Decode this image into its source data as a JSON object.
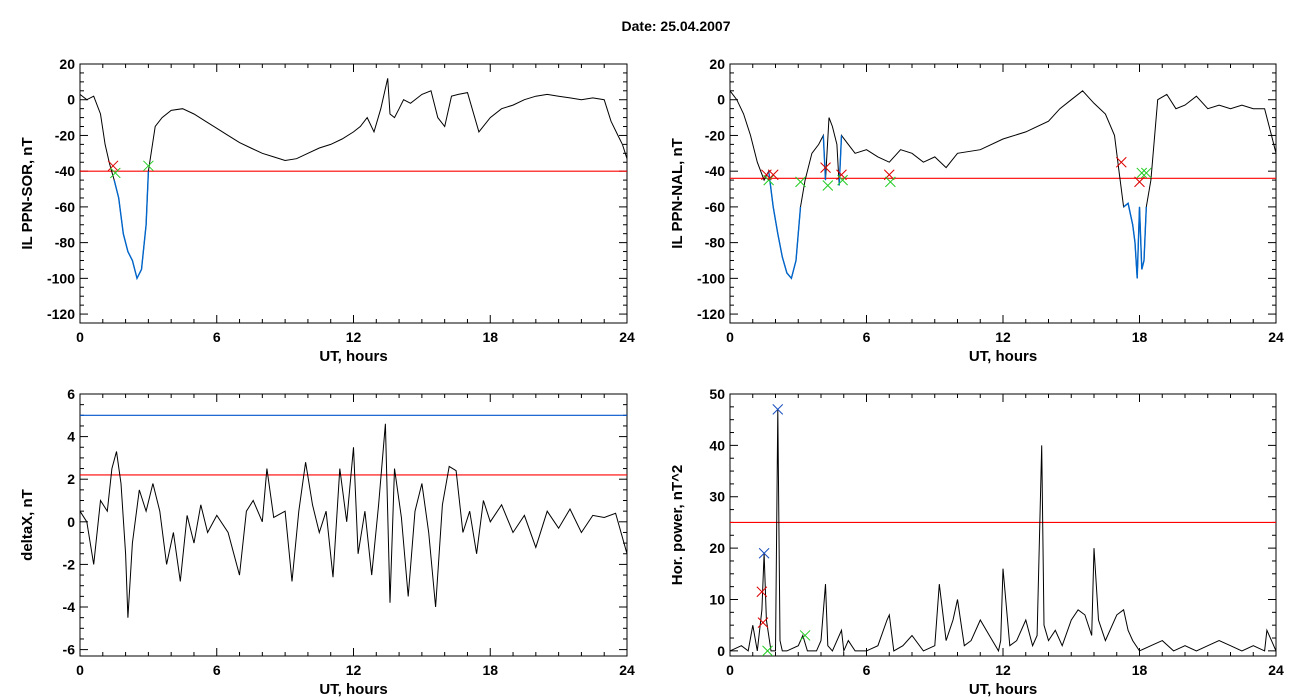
{
  "page": {
    "title": "Date:  25.04.2007"
  },
  "colors": {
    "trace": "#000000",
    "threshold": "#ff0000",
    "limit": "#0055cc",
    "highlight": "#0066cc",
    "start_marker": "#dd0000",
    "end_marker": "#22cc22",
    "peak_marker": "#1a4fbf"
  },
  "chart_data": [
    {
      "id": "p1",
      "type": "line",
      "xlabel": "UT, hours",
      "ylabel": "IL PPN-SOR, nT",
      "xlim": [
        0,
        24
      ],
      "ylim": [
        -125,
        20
      ],
      "xticks": [
        0,
        6,
        12,
        18,
        24
      ],
      "yticks": [
        -120,
        -100,
        -80,
        -60,
        -40,
        -20,
        0,
        20
      ],
      "series": [
        {
          "x": [
            0.0,
            0.3,
            0.6,
            0.9,
            1.1,
            1.3,
            1.5,
            1.7,
            1.9,
            2.1,
            2.3,
            2.5,
            2.7,
            2.9,
            3.0,
            3.3,
            3.6,
            4.0,
            4.5,
            5.0,
            5.5,
            6.0,
            6.5,
            7.0,
            7.5,
            8.0,
            8.5,
            9.0,
            9.5,
            10.0,
            10.5,
            11.0,
            11.5,
            12.0,
            12.3,
            12.6,
            12.9,
            13.2,
            13.5,
            13.6,
            13.8,
            14.0,
            14.2,
            14.5,
            15.0,
            15.4,
            15.7,
            16.0,
            16.3,
            16.6,
            17.0,
            17.5,
            18.0,
            18.5,
            19.0,
            19.5,
            20.0,
            20.5,
            21.0,
            21.5,
            22.0,
            22.5,
            23.0,
            23.3,
            23.6,
            23.8,
            24.0
          ],
          "y": [
            3,
            0,
            2,
            -8,
            -25,
            -36,
            -45,
            -55,
            -75,
            -85,
            -90,
            -100,
            -95,
            -70,
            -40,
            -15,
            -10,
            -6,
            -5,
            -8,
            -12,
            -16,
            -20,
            -24,
            -27,
            -30,
            -32,
            -34,
            -33,
            -30,
            -27,
            -25,
            -22,
            -18,
            -15,
            -10,
            -18,
            -5,
            12,
            -8,
            -10,
            -5,
            0,
            -2,
            3,
            5,
            -10,
            -15,
            2,
            3,
            4,
            -18,
            -10,
            -5,
            -3,
            0,
            2,
            3,
            2,
            1,
            0,
            1,
            0,
            -12,
            -20,
            -25,
            -33
          ],
          "highlight_range": [
            1.4,
            3.0
          ]
        }
      ],
      "threshold": -40,
      "markers": [
        {
          "x": 1.45,
          "y": -37,
          "color": "start"
        },
        {
          "x": 1.55,
          "y": -41,
          "color": "end"
        },
        {
          "x": 3.0,
          "y": -37,
          "color": "end"
        }
      ]
    },
    {
      "id": "p2",
      "type": "line",
      "xlabel": "UT, hours",
      "ylabel": "IL PPN-NAL, nT",
      "xlim": [
        0,
        24
      ],
      "ylim": [
        -125,
        20
      ],
      "xticks": [
        0,
        6,
        12,
        18,
        24
      ],
      "yticks": [
        -120,
        -100,
        -80,
        -60,
        -40,
        -20,
        0,
        20
      ],
      "series": [
        {
          "x": [
            0.0,
            0.3,
            0.6,
            0.9,
            1.2,
            1.5,
            1.7,
            1.9,
            2.1,
            2.3,
            2.5,
            2.7,
            2.9,
            3.1,
            3.3,
            3.6,
            3.9,
            4.1,
            4.2,
            4.35,
            4.5,
            4.7,
            4.8,
            4.9,
            5.2,
            5.5,
            6.0,
            6.5,
            7.0,
            7.5,
            8.0,
            8.5,
            9.0,
            9.5,
            10.0,
            11.0,
            12.0,
            13.0,
            14.0,
            14.5,
            15.0,
            15.5,
            16.0,
            16.5,
            16.9,
            17.1,
            17.3,
            17.5,
            17.7,
            17.8,
            17.9,
            18.0,
            18.1,
            18.2,
            18.3,
            18.5,
            18.8,
            19.2,
            19.6,
            20.0,
            20.5,
            21.0,
            21.5,
            22.0,
            22.5,
            23.0,
            23.5,
            23.8,
            24.0
          ],
          "y": [
            5,
            0,
            -8,
            -20,
            -35,
            -45,
            -40,
            -60,
            -75,
            -88,
            -97,
            -100,
            -90,
            -60,
            -45,
            -30,
            -25,
            -20,
            -45,
            -10,
            -15,
            -25,
            -48,
            -20,
            -25,
            -30,
            -28,
            -32,
            -35,
            -28,
            -30,
            -35,
            -32,
            -38,
            -30,
            -28,
            -22,
            -18,
            -12,
            -5,
            0,
            5,
            -2,
            -8,
            -20,
            -40,
            -60,
            -58,
            -70,
            -80,
            -100,
            -60,
            -95,
            -90,
            -60,
            -45,
            0,
            3,
            -5,
            -3,
            2,
            -5,
            -3,
            -5,
            -3,
            -5,
            -5,
            -20,
            -30
          ],
          "highlight_ranges": [
            [
              1.6,
              3.1
            ],
            [
              4.1,
              4.3
            ],
            [
              4.75,
              4.95
            ],
            [
              17.2,
              18.3
            ]
          ]
        }
      ],
      "threshold": -44,
      "markers": [
        {
          "x": 1.6,
          "y": -42,
          "color": "start"
        },
        {
          "x": 1.7,
          "y": -45,
          "color": "end"
        },
        {
          "x": 1.9,
          "y": -42,
          "color": "start"
        },
        {
          "x": 3.1,
          "y": -46,
          "color": "end"
        },
        {
          "x": 4.2,
          "y": -38,
          "color": "start"
        },
        {
          "x": 4.3,
          "y": -48,
          "color": "end"
        },
        {
          "x": 4.9,
          "y": -42,
          "color": "start"
        },
        {
          "x": 4.95,
          "y": -45,
          "color": "end"
        },
        {
          "x": 7.0,
          "y": -42,
          "color": "start"
        },
        {
          "x": 7.05,
          "y": -46,
          "color": "end"
        },
        {
          "x": 17.2,
          "y": -35,
          "color": "start"
        },
        {
          "x": 18.0,
          "y": -46,
          "color": "start"
        },
        {
          "x": 18.3,
          "y": -41,
          "color": "end"
        },
        {
          "x": 18.1,
          "y": -41,
          "color": "end"
        }
      ]
    },
    {
      "id": "p3",
      "type": "line",
      "xlabel": "UT, hours",
      "ylabel": "deltaX, nT",
      "xlim": [
        0,
        24
      ],
      "ylim": [
        -6.3,
        6
      ],
      "xticks": [
        0,
        6,
        12,
        18,
        24
      ],
      "yticks": [
        -6,
        -4,
        -2,
        0,
        2,
        4,
        6
      ],
      "series": [
        {
          "x": [
            0.0,
            0.3,
            0.6,
            0.9,
            1.2,
            1.4,
            1.6,
            1.8,
            2.0,
            2.1,
            2.3,
            2.6,
            2.9,
            3.2,
            3.5,
            3.8,
            4.1,
            4.4,
            4.7,
            5.0,
            5.3,
            5.6,
            6.0,
            6.5,
            7.0,
            7.3,
            7.6,
            8.0,
            8.2,
            8.5,
            9.0,
            9.3,
            9.6,
            9.9,
            10.2,
            10.5,
            10.8,
            11.1,
            11.4,
            11.7,
            12.0,
            12.2,
            12.5,
            12.8,
            13.1,
            13.4,
            13.6,
            13.8,
            14.1,
            14.4,
            14.7,
            15.0,
            15.3,
            15.6,
            15.9,
            16.2,
            16.5,
            16.8,
            17.1,
            17.4,
            17.7,
            18.0,
            18.5,
            19.0,
            19.5,
            20.0,
            20.5,
            21.0,
            21.5,
            22.0,
            22.5,
            23.0,
            23.5,
            24.0
          ],
          "y": [
            0.5,
            0,
            -2,
            1,
            0.5,
            2.5,
            3.3,
            1.8,
            -1.5,
            -4.5,
            -1,
            1.5,
            0.5,
            1.8,
            0.5,
            -2,
            -0.5,
            -2.8,
            0.3,
            -1,
            0.8,
            -0.5,
            0.3,
            -0.5,
            -2.5,
            0.5,
            1.0,
            0,
            2.5,
            0.2,
            0.5,
            -2.8,
            0.5,
            2.8,
            0.8,
            -0.5,
            0.5,
            -2.6,
            2.5,
            0,
            3.5,
            -1.5,
            0.5,
            -2.5,
            0.8,
            4.6,
            -3.8,
            2.5,
            0.2,
            -3.5,
            0.5,
            1.8,
            -0.5,
            -4.0,
            0.8,
            2.6,
            2.4,
            -0.5,
            0.5,
            -1.5,
            1.0,
            0,
            0.8,
            -0.5,
            0.3,
            -1.2,
            0.5,
            -0.3,
            0.6,
            -0.5,
            0.3,
            0.2,
            0.4,
            -1.5
          ]
        }
      ],
      "threshold": 2.2,
      "limit": 5.0
    },
    {
      "id": "p4",
      "type": "line",
      "xlabel": "UT, hours",
      "ylabel": "Hor. power, nT^2",
      "xlim": [
        0,
        24
      ],
      "ylim": [
        -1,
        50
      ],
      "xticks": [
        0,
        6,
        12,
        18,
        24
      ],
      "yticks": [
        0,
        10,
        20,
        30,
        40,
        50
      ],
      "series": [
        {
          "x": [
            0.0,
            0.5,
            0.8,
            1.0,
            1.2,
            1.4,
            1.5,
            1.6,
            1.8,
            2.0,
            2.1,
            2.2,
            2.3,
            2.5,
            3.0,
            3.2,
            3.4,
            3.8,
            4.0,
            4.2,
            4.3,
            4.5,
            4.9,
            5.0,
            5.2,
            5.5,
            6.0,
            6.5,
            6.9,
            7.0,
            7.2,
            7.6,
            8.0,
            8.5,
            9.0,
            9.2,
            9.5,
            9.8,
            10.0,
            10.3,
            10.6,
            11.0,
            11.4,
            11.8,
            11.9,
            12.0,
            12.3,
            12.6,
            13.0,
            13.3,
            13.5,
            13.7,
            13.8,
            14.0,
            14.3,
            14.6,
            15.0,
            15.3,
            15.6,
            15.9,
            16.0,
            16.2,
            16.5,
            17.0,
            17.3,
            17.5,
            17.7,
            18.0,
            18.5,
            19.0,
            19.5,
            20.0,
            20.5,
            21.0,
            21.5,
            22.0,
            22.5,
            23.0,
            23.5,
            23.6,
            23.8,
            24.0
          ],
          "y": [
            0,
            1,
            0,
            5,
            0,
            8,
            19,
            6,
            0,
            0,
            47,
            2,
            0,
            0,
            1,
            3,
            0,
            0,
            2,
            13,
            1,
            0,
            4,
            0,
            2,
            0,
            0,
            1,
            6,
            7,
            0,
            1,
            3,
            0,
            1,
            13,
            2,
            6,
            10,
            1,
            2,
            6,
            3,
            0,
            2,
            16,
            1,
            2,
            6,
            1,
            3,
            40,
            5,
            2,
            4,
            1,
            6,
            8,
            7,
            3,
            20,
            6,
            2,
            7,
            8,
            4,
            2,
            0,
            1,
            2,
            0,
            1,
            0,
            1,
            2,
            1,
            0,
            1,
            0,
            4,
            2,
            0
          ]
        }
      ],
      "threshold": 25,
      "markers": [
        {
          "x": 1.5,
          "y": 19,
          "color": "peak"
        },
        {
          "x": 2.1,
          "y": 47,
          "color": "peak"
        },
        {
          "x": 1.4,
          "y": 11.5,
          "color": "start"
        },
        {
          "x": 1.45,
          "y": 5.5,
          "color": "start"
        },
        {
          "x": 1.65,
          "y": 0,
          "color": "end"
        },
        {
          "x": 3.3,
          "y": 3,
          "color": "end"
        }
      ]
    }
  ]
}
